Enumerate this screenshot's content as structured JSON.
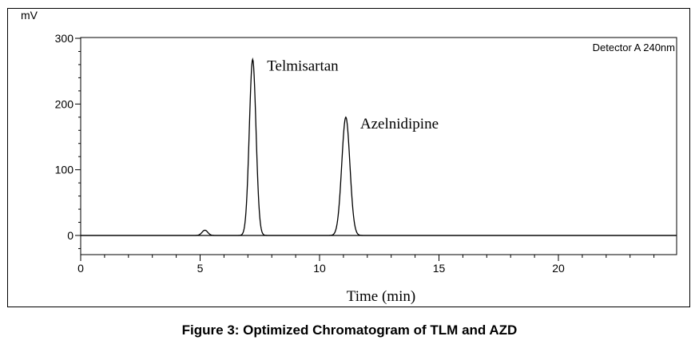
{
  "caption": "Figure 3: Optimized Chromatogram of TLM and AZD",
  "chart_data": {
    "type": "line",
    "y_unit": "mV",
    "xlabel": "Time (min)",
    "detector_label": "Detector A 240nm",
    "xlim": [
      0,
      25
    ],
    "ylim": [
      -30,
      300
    ],
    "x_ticks": [
      0,
      5,
      10,
      15,
      20
    ],
    "y_ticks": [
      0,
      100,
      200,
      300
    ],
    "peaks": [
      {
        "rt": 5.2,
        "height": 8,
        "width": 0.12
      },
      {
        "rt": 7.2,
        "height": 268,
        "width": 0.14,
        "label": "Telmisartan"
      },
      {
        "rt": 11.1,
        "height": 180,
        "width": 0.17,
        "label": "Azelnidipine"
      }
    ],
    "series": [
      {
        "x": [
          0,
          4.8,
          5.0,
          5.2,
          5.4,
          5.6,
          6.8,
          7.0,
          7.1,
          7.2,
          7.3,
          7.4,
          7.6,
          10.6,
          10.9,
          11.0,
          11.1,
          11.2,
          11.3,
          11.6,
          25
        ],
        "y": [
          0,
          0,
          3,
          8,
          3,
          0,
          0,
          100,
          210,
          268,
          210,
          100,
          0,
          0,
          90,
          150,
          180,
          150,
          90,
          0,
          0
        ]
      }
    ],
    "grid": false
  }
}
